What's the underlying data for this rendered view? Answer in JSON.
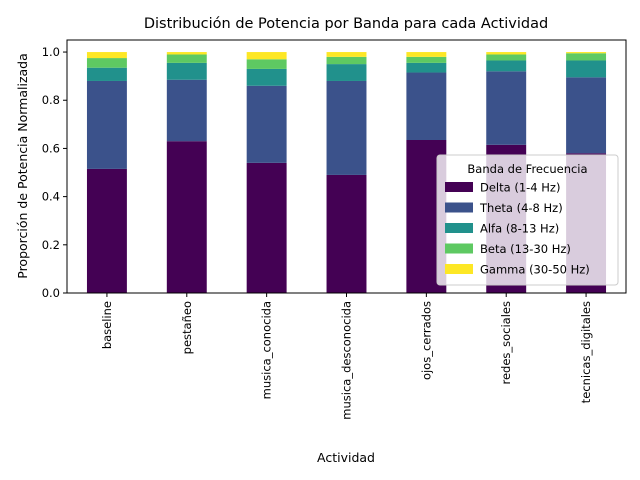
{
  "chart_data": {
    "type": "bar",
    "stacked": true,
    "title": "Distribución de Potencia por Banda para cada Actividad",
    "xlabel": "Actividad",
    "ylabel": "Proporción de Potencia Normalizada",
    "ylim": [
      0,
      1.05
    ],
    "yticks": [
      "0.0",
      "0.2",
      "0.4",
      "0.6",
      "0.8",
      "1.0"
    ],
    "categories": [
      "baseline",
      "pestañeo",
      "musica_conocida",
      "musica_desconocida",
      "ojos_cerrados",
      "redes_sociales",
      "tecnicas_digitales"
    ],
    "legend": {
      "title": "Banda de Frecuencia",
      "placement": "center-right"
    },
    "series": [
      {
        "name": "Delta (1-4 Hz)",
        "color": "#440154",
        "values": [
          0.515,
          0.63,
          0.54,
          0.49,
          0.635,
          0.615,
          0.58
        ]
      },
      {
        "name": "Theta (4-8 Hz)",
        "color": "#3b528b",
        "values": [
          0.365,
          0.255,
          0.32,
          0.39,
          0.28,
          0.305,
          0.315
        ]
      },
      {
        "name": "Alfa (8-13 Hz)",
        "color": "#21918c",
        "values": [
          0.055,
          0.07,
          0.07,
          0.07,
          0.04,
          0.045,
          0.07
        ]
      },
      {
        "name": "Beta (13-30 Hz)",
        "color": "#5ec962",
        "values": [
          0.04,
          0.035,
          0.04,
          0.03,
          0.025,
          0.025,
          0.03
        ]
      },
      {
        "name": "Gamma (30-50 Hz)",
        "color": "#fde725",
        "values": [
          0.025,
          0.01,
          0.03,
          0.02,
          0.02,
          0.01,
          0.005
        ]
      }
    ]
  }
}
